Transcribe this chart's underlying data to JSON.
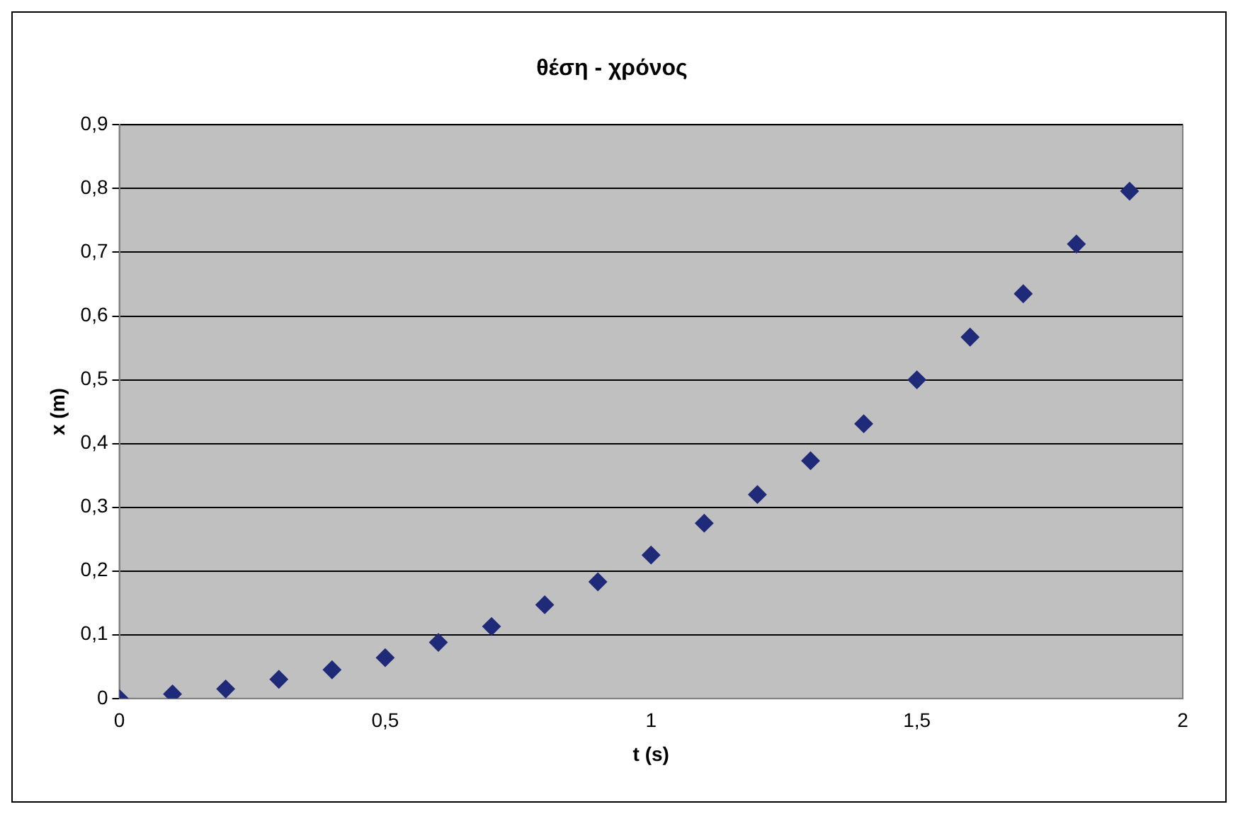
{
  "chart_data": {
    "type": "scatter",
    "title": "θέση - χρόνος",
    "xlabel": "t (s)",
    "ylabel": "x (m)",
    "x": [
      0,
      0.1,
      0.2,
      0.3,
      0.4,
      0.5,
      0.6,
      0.7,
      0.8,
      0.9,
      1,
      1.1,
      1.2,
      1.3,
      1.4,
      1.5,
      1.6,
      1.7,
      1.8,
      1.9
    ],
    "series": [
      {
        "color": "#1f2a78",
        "values": [
          0,
          0.007,
          0.015,
          0.03,
          0.045,
          0.064,
          0.088,
          0.113,
          0.147,
          0.183,
          0.225,
          0.275,
          0.32,
          0.373,
          0.431,
          0.5,
          0.567,
          0.635,
          0.713,
          0.796
        ]
      }
    ],
    "xlim": [
      0,
      2
    ],
    "xticks": [
      0,
      {
        "value": 0.5,
        "label": "0,5"
      },
      1,
      {
        "value": 1.5,
        "label": "1,5"
      },
      2
    ],
    "ylim": [
      0,
      0.9
    ],
    "yticks": [
      0,
      {
        "value": 0.1,
        "label": "0,1"
      },
      {
        "value": 0.2,
        "label": "0,2"
      },
      {
        "value": 0.3,
        "label": "0,3"
      },
      {
        "value": 0.4,
        "label": "0,4"
      },
      {
        "value": 0.5,
        "label": "0,5"
      },
      {
        "value": 0.6,
        "label": "0,6"
      },
      {
        "value": 0.7,
        "label": "0,7"
      },
      {
        "value": 0.8,
        "label": "0,8"
      },
      {
        "value": 0.9,
        "label": "0,9"
      }
    ],
    "grid": "y",
    "legend": false,
    "marker": "diamond"
  }
}
